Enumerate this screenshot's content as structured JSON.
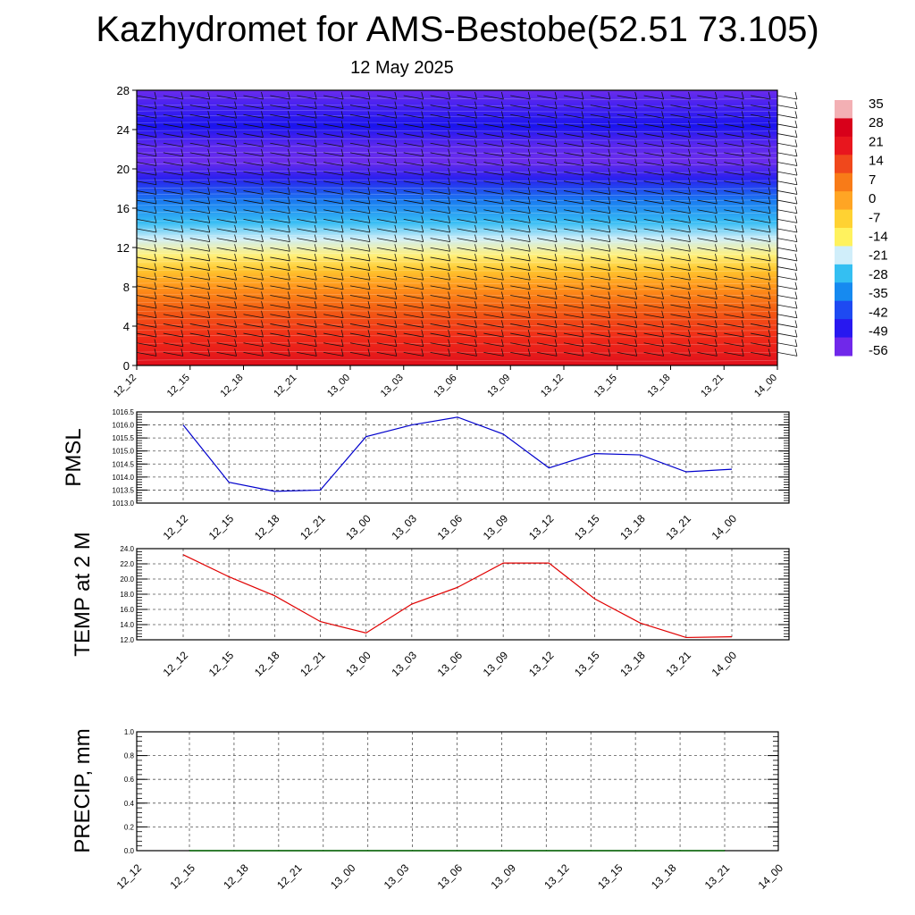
{
  "title": "Kazhydromet for AMS-Bestobe(52.51 73.105)",
  "subtitle": "12 May 2025",
  "chart_data": [
    {
      "type": "heatmap",
      "x_ticks": [
        "12_12",
        "12_15",
        "12_18",
        "12_21",
        "13_00",
        "13_03",
        "13_06",
        "13_09",
        "13_12",
        "13_15",
        "13_18",
        "13_21",
        "14_00"
      ],
      "y_ticks": [
        "0",
        "4",
        "8",
        "12",
        "16",
        "20",
        "24",
        "28"
      ],
      "ylim": [
        0,
        28
      ],
      "colorbar_labels": [
        "35",
        "28",
        "21",
        "14",
        "7",
        "0",
        "-7",
        "-14",
        "-21",
        "-28",
        "-35",
        "-42",
        "-49",
        "-56"
      ],
      "colorbar_values": [
        35,
        28,
        21,
        14,
        7,
        0,
        -7,
        -14,
        -21,
        -28,
        -35,
        -42,
        -49,
        -56
      ],
      "colors": [
        "#F3B0B4",
        "#D8001A",
        "#E8161E",
        "#F0481C",
        "#F87B18",
        "#FFA524",
        "#FFD232",
        "#FFF25E",
        "#D0EEFA",
        "#34BFF2",
        "#168AF0",
        "#1E4AF2",
        "#2818F0",
        "#7028EA"
      ]
    },
    {
      "type": "line",
      "ylabel": "PMSL",
      "x": [
        "12_12",
        "12_15",
        "12_18",
        "12_21",
        "13_00",
        "13_03",
        "13_06",
        "13_09",
        "13_12",
        "13_15",
        "13_18",
        "13_21",
        "14_00"
      ],
      "y_ticks": [
        "1013.0",
        "1013.5",
        "1014.0",
        "1014.5",
        "1015.0",
        "1015.5",
        "1016.0",
        "1016.5"
      ],
      "ylim": [
        1013.0,
        1016.5
      ],
      "grid": true,
      "series": [
        {
          "color": "#0000CC",
          "values": [
            1016.0,
            1013.8,
            1013.45,
            1013.5,
            1015.55,
            1016.0,
            1016.3,
            1015.65,
            1014.35,
            1014.9,
            1014.85,
            1014.2,
            1014.3
          ]
        }
      ]
    },
    {
      "type": "line",
      "ylabel": "TEMP at 2 M",
      "x": [
        "12_12",
        "12_15",
        "12_18",
        "12_21",
        "13_00",
        "13_03",
        "13_06",
        "13_09",
        "13_12",
        "13_15",
        "13_18",
        "13_21",
        "14_00"
      ],
      "y_ticks": [
        "12.0",
        "14.0",
        "16.0",
        "18.0",
        "20.0",
        "22.0",
        "24.0"
      ],
      "ylim": [
        12.0,
        24.0
      ],
      "grid": true,
      "series": [
        {
          "color": "#E00000",
          "values": [
            23.2,
            20.3,
            17.8,
            14.4,
            12.9,
            16.7,
            18.9,
            22.1,
            22.1,
            17.4,
            14.2,
            12.3,
            12.4
          ]
        }
      ]
    },
    {
      "type": "line",
      "ylabel": "PRECIP, mm",
      "x": [
        "12_12",
        "12_15",
        "12_18",
        "12_21",
        "13_00",
        "13_03",
        "13_06",
        "13_09",
        "13_12",
        "13_15",
        "13_18",
        "13_21",
        "14_00"
      ],
      "y_ticks": [
        "0.0",
        "0.2",
        "0.4",
        "0.6",
        "0.8",
        "1.0"
      ],
      "ylim": [
        0.0,
        1.0
      ],
      "grid": true,
      "series": [
        {
          "color": "#006400",
          "values": [
            0,
            0,
            0,
            0,
            0,
            0,
            0,
            0,
            0,
            0,
            0,
            0,
            0
          ]
        }
      ]
    }
  ]
}
